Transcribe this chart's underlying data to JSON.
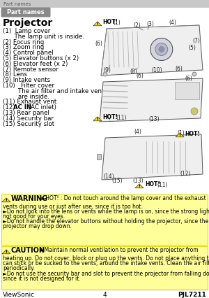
{
  "page_bg": "#ffffff",
  "header_bar_color": "#c8c8c8",
  "header_bar_text": "Part names",
  "header_bar_text_color": "#555555",
  "section_tab_color": "#888888",
  "section_tab_text": "Part names",
  "section_tab_text_color": "#ffffff",
  "title": "Projector",
  "parts_list": [
    [
      "(1)  Lamp cover",
      false
    ],
    [
      "      The lamp unit is inside.",
      false
    ],
    [
      "(2) Focus ring",
      false
    ],
    [
      "(3) Zoom ring",
      false
    ],
    [
      "(4) Control panel",
      false
    ],
    [
      "(5) Elevator buttons (x 2)",
      false
    ],
    [
      "(6) Elevator feet (x 2)",
      false
    ],
    [
      "(7) Remote sensor",
      false
    ],
    [
      "(8) Lens",
      false
    ],
    [
      "(9) Intake vents",
      false
    ],
    [
      "(10)   Filter cover",
      false
    ],
    [
      "        The air filter and intake vent",
      false
    ],
    [
      "        are inside.",
      false
    ],
    [
      "(11) Exhaust vent",
      false
    ],
    [
      "(12)  AC IN (AC inlet)",
      true
    ],
    [
      "(13) Rear panel",
      false
    ],
    [
      "(14) Security bar",
      false
    ],
    [
      "(15) Security slot",
      false
    ]
  ],
  "warning_box_color": "#ffff99",
  "warn_line1": "►HOT! : Do not touch around the lamp cover and the exhaust",
  "warn_line2": "vents during use or just after use, since it is too hot.",
  "warn_line3": "►Do not look into the lens or vents while the lamp is on, since the strong light is",
  "warn_line4": "not good for your eyes.",
  "warn_line5": "►Do not handle the elevator buttons without holding the projector, since the",
  "warn_line6": "projector may drop down.",
  "caut_line1": "►Maintain normal ventilation to prevent the projector from",
  "caut_line2": "heating up. Do not cover, block or plug up the vents. Do not place anything that",
  "caut_line3": "can stick or be sucked to the vents, around the intake vents. Clean the air filter",
  "caut_line4": "periodically.",
  "caut_line5": "►Do not use the security bar and slot to prevent the projector from falling down,",
  "caut_line6": "since it is not designed for it.",
  "footer_left": "ViewSonic",
  "footer_center": "4",
  "footer_right": "PJL7211"
}
